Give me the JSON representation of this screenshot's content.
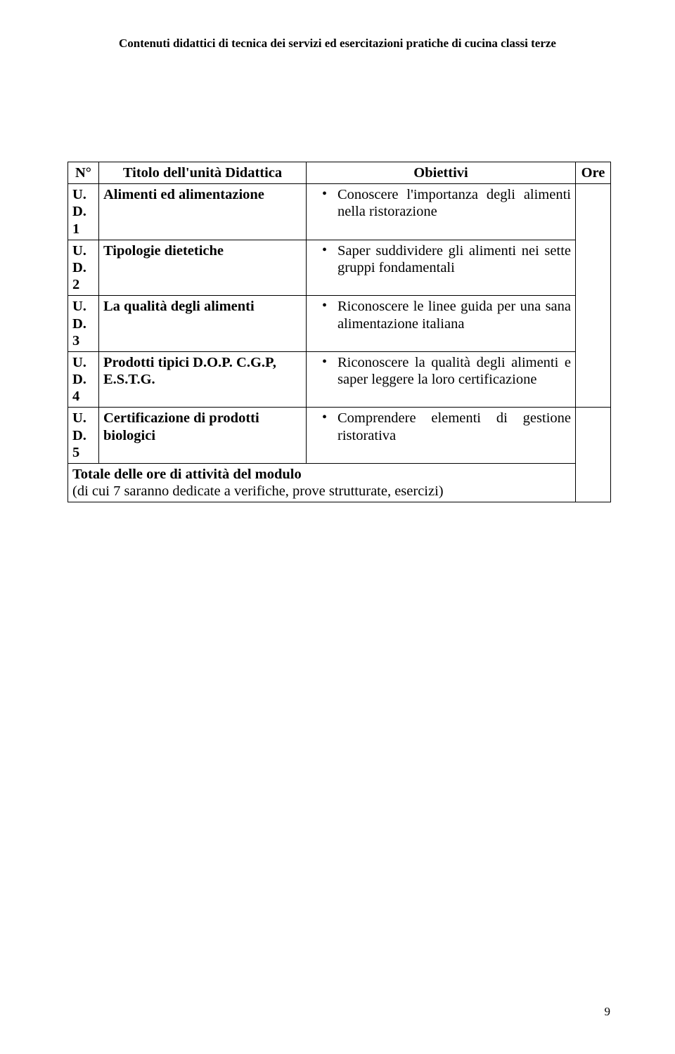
{
  "page": {
    "header": "Contenuti didattici di tecnica dei servizi ed esercitazioni pratiche di cucina classi terze",
    "page_number": "9"
  },
  "table": {
    "headers": {
      "c1": "N°",
      "c2": "Titolo dell'unità Didattica",
      "c3": "Obiettivi",
      "c4": "Ore"
    },
    "rows": [
      {
        "n": "U. D. 1",
        "title": "Alimenti ed alimentazione",
        "obj": "Conoscere l'importanza degli alimenti nella ristorazione"
      },
      {
        "n": "U. D. 2",
        "title": "Tipologie dietetiche",
        "obj": "Saper suddividere gli alimenti nei sette gruppi fondamentali"
      },
      {
        "n": "U. D. 3",
        "title": "La qualità degli alimenti",
        "obj": "Riconoscere le linee guida per una sana alimentazione italiana"
      },
      {
        "n": "U. D. 4",
        "title": "Prodotti tipici D.O.P. C.G.P, E.S.T.G.",
        "obj": "Riconoscere la qualità degli alimenti e saper leggere la loro certificazione"
      },
      {
        "n": "U. D. 5",
        "title": "Certificazione di prodotti biologici",
        "obj": "Comprendere elementi di gestione ristorativa"
      }
    ],
    "footer": {
      "line1": "Totale delle ore di attività del modulo",
      "line2": "(di cui 7 saranno dedicate a verifiche, prove strutturate, esercizi)"
    }
  },
  "colors": {
    "text": "#000000",
    "background": "#ffffff",
    "border": "#000000"
  },
  "fonts": {
    "body_family": "Times New Roman",
    "header_size_pt": 12,
    "table_size_pt": 15
  }
}
